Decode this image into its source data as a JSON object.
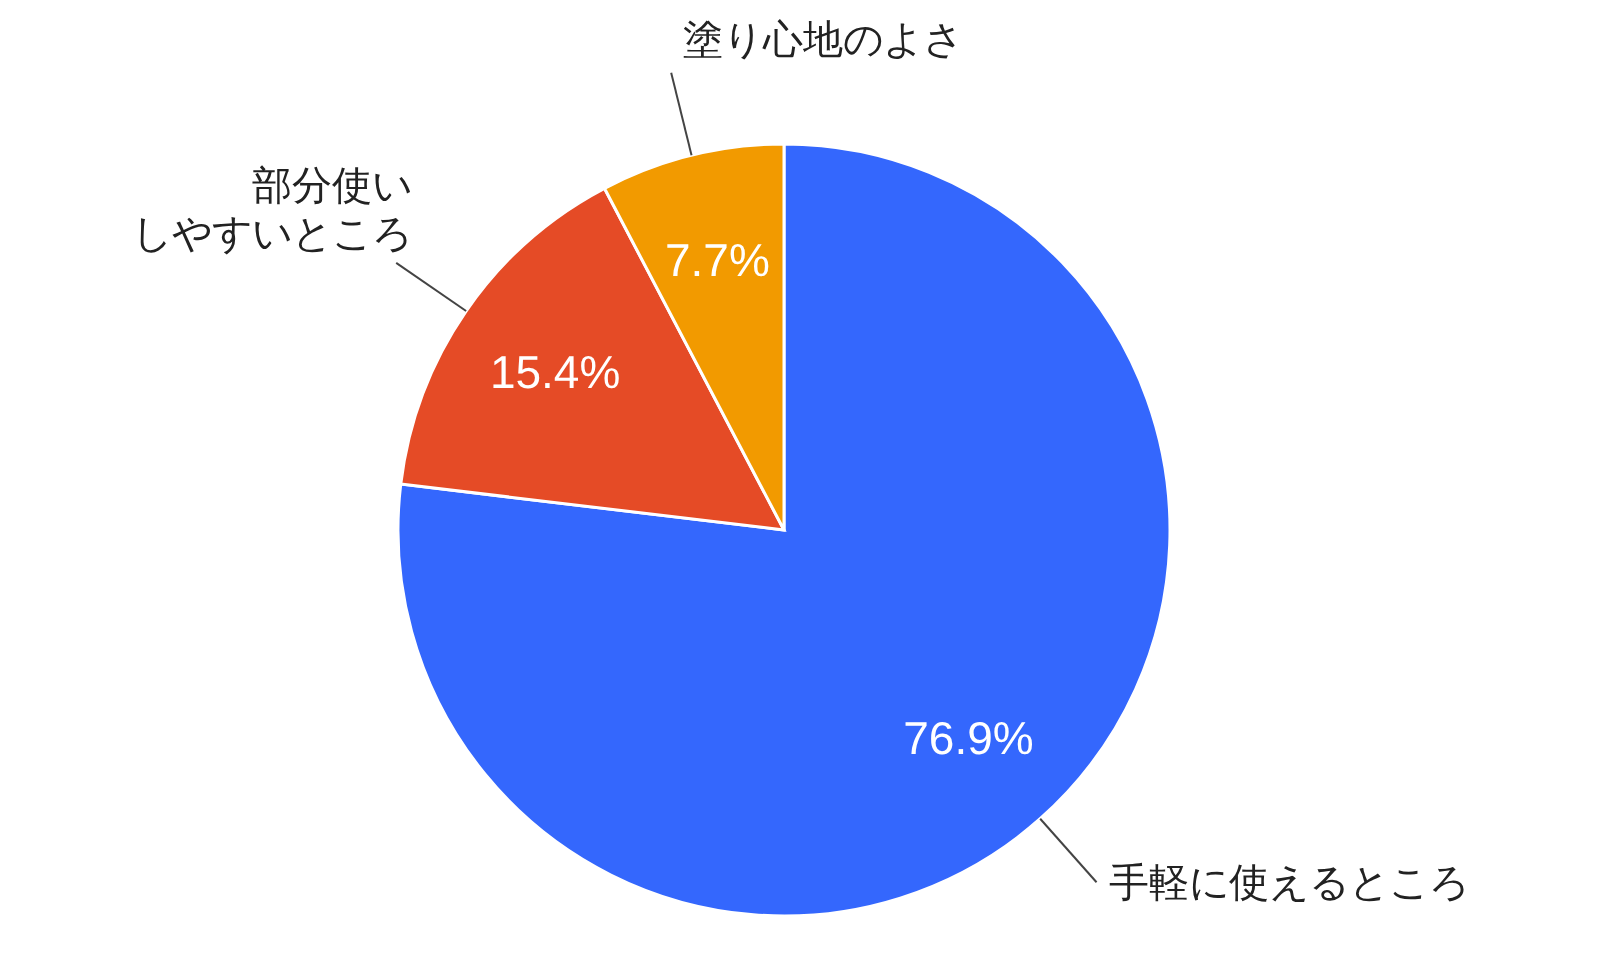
{
  "chart_data": {
    "type": "pie",
    "categories": [
      "手軽に使えるところ",
      "部分使いしやすいところ",
      "塗り心地のよさ"
    ],
    "values": [
      76.9,
      15.4,
      7.7
    ],
    "colors": [
      "#3467fd",
      "#e54b26",
      "#f29a00"
    ],
    "value_labels": [
      "76.9%",
      "15.4%",
      "7.7%"
    ]
  }
}
